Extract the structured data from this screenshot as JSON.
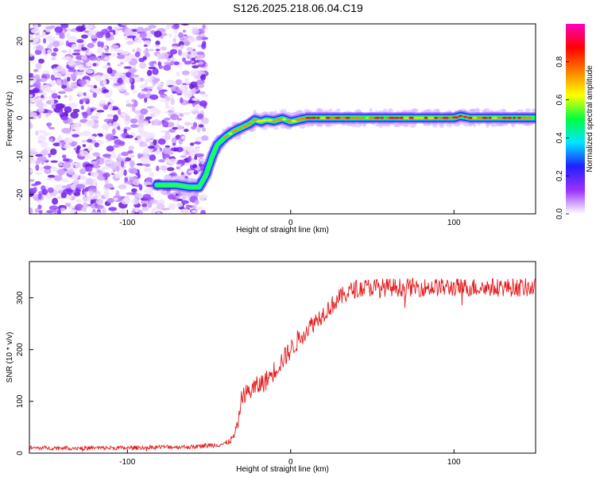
{
  "title": "S126.2025.218.06.04.C19",
  "chart_data": [
    {
      "type": "heatmap",
      "xlabel": "Height of straight line (km)",
      "ylabel": "Frequency (Hz)",
      "xlim": [
        -160,
        150
      ],
      "ylim": [
        -25,
        24.5
      ],
      "x_ticks": [
        -100,
        0,
        100
      ],
      "y_ticks": [
        20,
        10,
        0,
        -10,
        -20
      ],
      "colorbar": {
        "label": "Normalized spectral amplitude",
        "range": [
          0,
          1
        ],
        "ticks": [
          0.0,
          0.2,
          0.4,
          0.6,
          0.8
        ],
        "colors": [
          "#ffffff",
          "#9b30ff",
          "#2020ff",
          "#00e5ff",
          "#00ff40",
          "#ffff00",
          "#ff7f00",
          "#ff0000",
          "#ff00c0"
        ]
      },
      "ridge": {
        "x": [
          -80,
          -70,
          -62,
          -56,
          -52,
          -48,
          -45,
          -40,
          -35,
          -30,
          -25,
          -22,
          -18,
          -15,
          -10,
          -5,
          0,
          10,
          20,
          40,
          60,
          80,
          100,
          104,
          110,
          130,
          150
        ],
        "frequency": [
          -17.5,
          -17.5,
          -18,
          -18,
          -15,
          -10,
          -7,
          -5,
          -3.5,
          -2.5,
          -1.5,
          -0.5,
          -1,
          -0.5,
          -0.8,
          -0.2,
          -1,
          0,
          0,
          0,
          0,
          0,
          0,
          0.5,
          0,
          0,
          0
        ]
      }
    },
    {
      "type": "line",
      "xlabel": "Height of straight line (km)",
      "ylabel": "SNR (10 * v/v)",
      "xlim": [
        -160,
        150
      ],
      "ylim": [
        0,
        370
      ],
      "x_ticks": [
        -100,
        0,
        100
      ],
      "y_ticks": [
        0,
        100,
        200,
        300
      ],
      "series": [
        {
          "color": "#e41a1c",
          "x": [
            -160,
            -140,
            -120,
            -100,
            -80,
            -60,
            -50,
            -40,
            -35,
            -32,
            -30,
            -25,
            -20,
            -15,
            -10,
            -5,
            0,
            5,
            10,
            15,
            20,
            25,
            30,
            35,
            40,
            50,
            60,
            70,
            80,
            90,
            100,
            110,
            120,
            130,
            140,
            150
          ],
          "values": [
            10,
            10,
            10,
            10,
            12,
            12,
            15,
            18,
            30,
            60,
            110,
            120,
            130,
            140,
            160,
            180,
            200,
            220,
            240,
            255,
            270,
            285,
            300,
            310,
            318,
            320,
            320,
            320,
            320,
            320,
            320,
            320,
            320,
            320,
            320,
            320
          ],
          "noise": [
            4,
            4,
            4,
            4,
            4,
            4,
            5,
            5,
            8,
            10,
            15,
            20,
            20,
            20,
            20,
            20,
            20,
            20,
            18,
            18,
            18,
            18,
            18,
            18,
            18,
            18,
            18,
            18,
            18,
            18,
            18,
            18,
            18,
            18,
            18,
            18
          ]
        }
      ]
    }
  ]
}
